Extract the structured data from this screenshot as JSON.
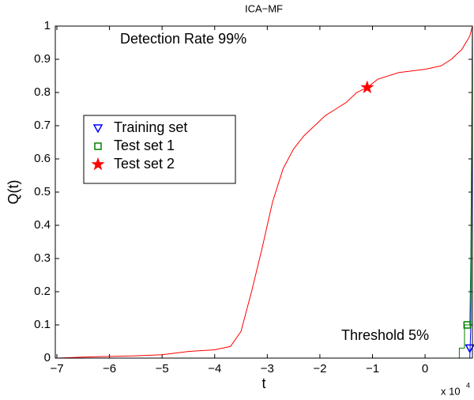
{
  "chart_data": {
    "type": "line",
    "title": "ICA−MF",
    "xlabel": "t",
    "ylabel": "Q(t)",
    "x_multiplier": "x 10",
    "x_exponent": "4",
    "annotations": [
      "Detection Rate 99%",
      "Threshold  5%"
    ],
    "xlim": [
      -7.03,
      0.9
    ],
    "ylim": [
      0,
      1
    ],
    "xticks": [
      {
        "value": -7,
        "label": "−7"
      },
      {
        "value": -6,
        "label": "−6"
      },
      {
        "value": -5,
        "label": "−5"
      },
      {
        "value": -4,
        "label": "−4"
      },
      {
        "value": -3,
        "label": "−3"
      },
      {
        "value": -2,
        "label": "−2"
      },
      {
        "value": -1,
        "label": "−1"
      },
      0
    ],
    "yticks": [
      0,
      0.1,
      0.2,
      0.3,
      0.4,
      0.5,
      0.6,
      0.7,
      0.8,
      0.9,
      1
    ],
    "series": [
      {
        "name": "Training set",
        "color": "#0000ff",
        "marker": "triangle-down",
        "x": [
          -7,
          0.85,
          0.87,
          0.9
        ],
        "values": [
          0,
          0,
          0.1,
          1
        ],
        "marker_x": 0.85,
        "marker_y": 0.03
      },
      {
        "name": "Test set 1",
        "color": "#008000",
        "marker": "square",
        "x": [
          -7,
          0.65,
          0.65,
          0.75,
          0.75,
          0.85,
          0.87,
          0.9
        ],
        "values": [
          0,
          0,
          0.03,
          0.03,
          0.1,
          0.1,
          0.3,
          1
        ],
        "marker_x": 0.8,
        "marker_y": 0.1
      },
      {
        "name": "Test set 2",
        "color": "#ff0000",
        "marker": "star",
        "x": [
          -7,
          -6.5,
          -6,
          -5.5,
          -5,
          -4.5,
          -4,
          -3.7,
          -3.5,
          -3.3,
          -3.1,
          -3,
          -2.9,
          -2.7,
          -2.5,
          -2.3,
          -2.1,
          -1.9,
          -1.7,
          -1.5,
          -1.3,
          -1.1,
          -0.9,
          -0.5,
          0,
          0.3,
          0.5,
          0.7,
          0.85,
          0.9
        ],
        "values": [
          0,
          0.003,
          0.005,
          0.007,
          0.01,
          0.02,
          0.025,
          0.035,
          0.08,
          0.2,
          0.33,
          0.4,
          0.47,
          0.57,
          0.63,
          0.67,
          0.7,
          0.73,
          0.75,
          0.77,
          0.8,
          0.815,
          0.84,
          0.86,
          0.87,
          0.88,
          0.9,
          0.93,
          0.97,
          1
        ],
        "marker_x": -1.1,
        "marker_y": 0.815
      }
    ]
  }
}
